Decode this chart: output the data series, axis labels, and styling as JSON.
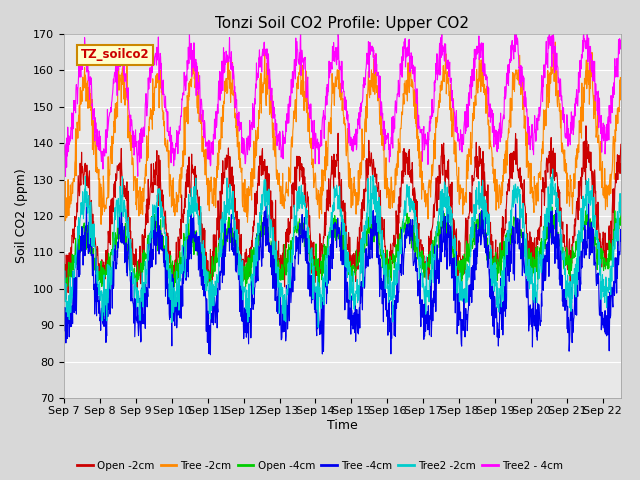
{
  "title": "Tonzi Soil CO2 Profile: Upper CO2",
  "ylabel": "Soil CO2 (ppm)",
  "xlabel": "Time",
  "legend_label": "TZ_soilco2",
  "ylim": [
    70,
    170
  ],
  "yticks": [
    70,
    80,
    90,
    100,
    110,
    120,
    130,
    140,
    150,
    160,
    170
  ],
  "x_tick_labels": [
    "Sep 7",
    "Sep 8",
    "Sep 9",
    "Sep 10",
    "Sep 11",
    "Sep 12",
    "Sep 13",
    "Sep 14",
    "Sep 15",
    "Sep 16",
    "Sep 17",
    "Sep 18",
    "Sep 19",
    "Sep 20",
    "Sep 21",
    "Sep 22"
  ],
  "series_colors": {
    "Open -2cm": "#cc0000",
    "Tree -2cm": "#ff8800",
    "Open -4cm": "#00cc00",
    "Tree -4cm": "#0000ee",
    "Tree2 -2cm": "#00cccc",
    "Tree2 - 4cm": "#ff00ff"
  },
  "background_color": "#e8e8e8",
  "title_fontsize": 11,
  "axis_fontsize": 9,
  "tick_fontsize": 8,
  "legend_box_color": "#ffffcc",
  "legend_box_edge": "#cc8800"
}
